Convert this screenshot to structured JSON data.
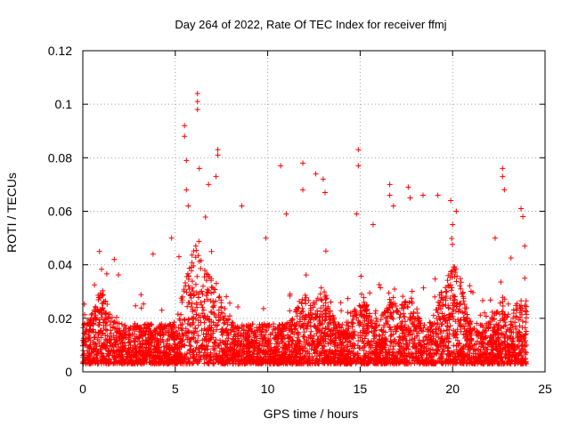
{
  "chart_data": {
    "type": "scatter",
    "title": "Day 264 of 2022, Rate Of TEC Index for receiver ffmj",
    "xlabel": "GPS time / hours",
    "ylabel": "ROTI / TECUs",
    "xlim": [
      0,
      25
    ],
    "ylim": [
      0,
      0.12
    ],
    "x_ticks": [
      0,
      5,
      10,
      15,
      20,
      25
    ],
    "x_tick_labels": [
      "0",
      "5",
      "10",
      "15",
      "20",
      "25"
    ],
    "y_ticks": [
      0,
      0.02,
      0.04,
      0.06,
      0.08,
      0.1,
      0.12
    ],
    "y_tick_labels": [
      "0",
      "0.02",
      "0.04",
      "0.06",
      "0.08",
      "0.1",
      "0.12"
    ],
    "grid": true,
    "marker": "+",
    "color": "#ff0000",
    "series": [
      {
        "name": "ROTI",
        "x_range": [
          0,
          24
        ],
        "baseline_range": [
          0.003,
          0.02
        ],
        "notable_points": [
          {
            "x": 0.9,
            "y": 0.045
          },
          {
            "x": 1.7,
            "y": 0.042
          },
          {
            "x": 3.8,
            "y": 0.044
          },
          {
            "x": 4.8,
            "y": 0.05
          },
          {
            "x": 5.2,
            "y": 0.043
          },
          {
            "x": 5.5,
            "y": 0.092
          },
          {
            "x": 5.5,
            "y": 0.088
          },
          {
            "x": 5.6,
            "y": 0.079
          },
          {
            "x": 5.6,
            "y": 0.068
          },
          {
            "x": 5.7,
            "y": 0.062
          },
          {
            "x": 6.2,
            "y": 0.104
          },
          {
            "x": 6.2,
            "y": 0.101
          },
          {
            "x": 6.2,
            "y": 0.098
          },
          {
            "x": 6.3,
            "y": 0.076
          },
          {
            "x": 6.8,
            "y": 0.07
          },
          {
            "x": 7.3,
            "y": 0.083
          },
          {
            "x": 7.3,
            "y": 0.081
          },
          {
            "x": 7.2,
            "y": 0.073
          },
          {
            "x": 8.6,
            "y": 0.062
          },
          {
            "x": 9.9,
            "y": 0.05
          },
          {
            "x": 10.7,
            "y": 0.077
          },
          {
            "x": 11.0,
            "y": 0.059
          },
          {
            "x": 11.9,
            "y": 0.078
          },
          {
            "x": 11.9,
            "y": 0.068
          },
          {
            "x": 12.6,
            "y": 0.074
          },
          {
            "x": 13.0,
            "y": 0.072
          },
          {
            "x": 13.1,
            "y": 0.067
          },
          {
            "x": 14.9,
            "y": 0.083
          },
          {
            "x": 14.9,
            "y": 0.077
          },
          {
            "x": 14.8,
            "y": 0.059
          },
          {
            "x": 15.7,
            "y": 0.055
          },
          {
            "x": 16.6,
            "y": 0.07
          },
          {
            "x": 16.6,
            "y": 0.066
          },
          {
            "x": 16.8,
            "y": 0.062
          },
          {
            "x": 17.6,
            "y": 0.069
          },
          {
            "x": 17.7,
            "y": 0.065
          },
          {
            "x": 18.4,
            "y": 0.066
          },
          {
            "x": 19.2,
            "y": 0.066
          },
          {
            "x": 19.9,
            "y": 0.064
          },
          {
            "x": 20.2,
            "y": 0.06
          },
          {
            "x": 20.0,
            "y": 0.055
          },
          {
            "x": 22.3,
            "y": 0.05
          },
          {
            "x": 22.7,
            "y": 0.076
          },
          {
            "x": 22.7,
            "y": 0.073
          },
          {
            "x": 22.8,
            "y": 0.068
          },
          {
            "x": 23.7,
            "y": 0.061
          },
          {
            "x": 23.8,
            "y": 0.058
          },
          {
            "x": 23.9,
            "y": 0.047
          },
          {
            "x": 23.9,
            "y": 0.035
          }
        ]
      }
    ]
  }
}
